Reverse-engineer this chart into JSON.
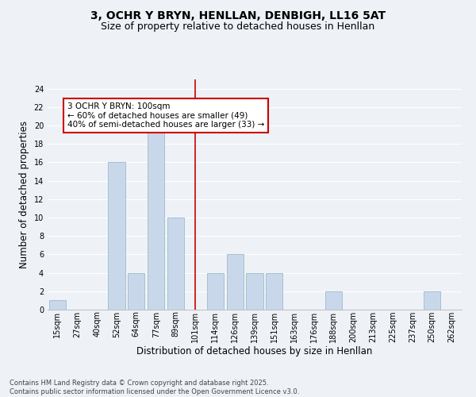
{
  "title_line1": "3, OCHR Y BRYN, HENLLAN, DENBIGH, LL16 5AT",
  "title_line2": "Size of property relative to detached houses in Henllan",
  "xlabel": "Distribution of detached houses by size in Henllan",
  "ylabel": "Number of detached properties",
  "categories": [
    "15sqm",
    "27sqm",
    "40sqm",
    "52sqm",
    "64sqm",
    "77sqm",
    "89sqm",
    "101sqm",
    "114sqm",
    "126sqm",
    "139sqm",
    "151sqm",
    "163sqm",
    "176sqm",
    "188sqm",
    "200sqm",
    "213sqm",
    "225sqm",
    "237sqm",
    "250sqm",
    "262sqm"
  ],
  "values": [
    1,
    0,
    0,
    16,
    4,
    20,
    10,
    0,
    4,
    6,
    4,
    4,
    0,
    0,
    2,
    0,
    0,
    0,
    0,
    2,
    0
  ],
  "bar_color": "#c8d8ea",
  "bar_edge_color": "#a0b8cc",
  "vline_index": 7,
  "vline_color": "#cc0000",
  "annotation_text": "3 OCHR Y BRYN: 100sqm\n← 60% of detached houses are smaller (49)\n40% of semi-detached houses are larger (33) →",
  "annotation_box_color": "white",
  "annotation_box_edge_color": "#cc0000",
  "ylim": [
    0,
    25
  ],
  "yticks": [
    0,
    2,
    4,
    6,
    8,
    10,
    12,
    14,
    16,
    18,
    20,
    22,
    24
  ],
  "background_color": "#eef2f7",
  "grid_color": "white",
  "footer_text": "Contains HM Land Registry data © Crown copyright and database right 2025.\nContains public sector information licensed under the Open Government Licence v3.0.",
  "title_fontsize": 10,
  "subtitle_fontsize": 9,
  "tick_fontsize": 7,
  "label_fontsize": 8.5,
  "annotation_fontsize": 7.5,
  "footer_fontsize": 6
}
